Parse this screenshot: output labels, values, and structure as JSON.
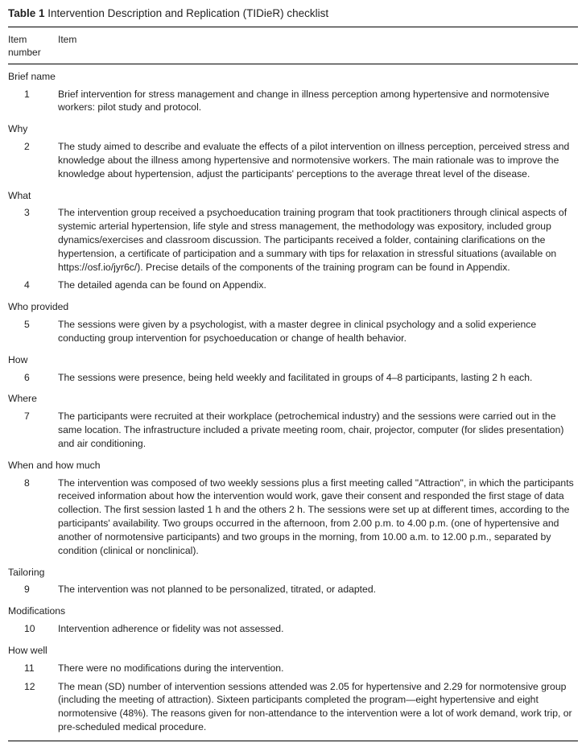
{
  "table": {
    "title_prefix": "Table 1",
    "title_rest": " Intervention Description and Replication (TIDieR) checklist",
    "header": {
      "col1": "Item number",
      "col2": "Item"
    },
    "sections": [
      {
        "label": "Brief name",
        "rows": [
          {
            "num": "1",
            "text": "Brief intervention for stress management and change in illness perception among hypertensive and normotensive workers: pilot study and protocol."
          }
        ]
      },
      {
        "label": "Why",
        "rows": [
          {
            "num": "2",
            "text": "The study aimed to describe and evaluate the effects of a pilot intervention on illness perception, perceived stress and knowledge about the illness among hypertensive and normotensive workers. The main rationale was to improve the knowledge about hypertension, adjust the participants' perceptions to the average threat level of the disease."
          }
        ]
      },
      {
        "label": "What",
        "rows": [
          {
            "num": "3",
            "text": "The intervention group received a psychoeducation training program that took practitioners through clinical aspects of systemic arterial hypertension, life style and stress management, the methodology was expository, included group dynamics/exercises and classroom discussion. The participants received a folder, containing clarifications on the hypertension, a certificate of participation and a summary with tips for relaxation in stressful situations (available on https://osf.io/jyr6c/). Precise details of the components of the training program can be found in Appendix."
          },
          {
            "num": "4",
            "text": "The detailed agenda can be found on Appendix."
          }
        ]
      },
      {
        "label": "Who provided",
        "rows": [
          {
            "num": "5",
            "text": "The sessions were given by a psychologist, with a master degree in clinical psychology and a solid experience conducting group intervention for psychoeducation or change of health behavior."
          }
        ]
      },
      {
        "label": "How",
        "rows": [
          {
            "num": "6",
            "text": "The sessions were presence, being held weekly and facilitated in groups of 4–8 participants, lasting 2 h each."
          }
        ]
      },
      {
        "label": "Where",
        "rows": [
          {
            "num": "7",
            "text": "The participants were recruited at their workplace (petrochemical industry) and the sessions were carried out in the same location. The infrastructure included a private meeting room, chair, projector, computer (for slides presentation) and air conditioning."
          }
        ]
      },
      {
        "label": "When and how much",
        "rows": [
          {
            "num": "8",
            "text": "The intervention was composed of two weekly sessions plus a first meeting called \"Attraction\", in which the participants received information about how the intervention would work, gave their consent and responded the first stage of data collection. The first session lasted 1 h and the others 2 h. The sessions were set up at different times, according to the participants' availability. Two groups occurred in the afternoon, from 2.00 p.m. to 4.00 p.m. (one of hypertensive and another of normotensive participants) and two groups in the morning, from 10.00 a.m. to 12.00 p.m., separated by condition (clinical or nonclinical)."
          }
        ]
      },
      {
        "label": "Tailoring",
        "rows": [
          {
            "num": "9",
            "text": "The intervention was not planned to be personalized, titrated, or adapted."
          }
        ]
      },
      {
        "label": "Modifications",
        "rows": [
          {
            "num": "10",
            "text": "Intervention adherence or fidelity was not assessed."
          }
        ]
      },
      {
        "label": "How well",
        "rows": [
          {
            "num": "11",
            "text": "There were no modifications during the intervention."
          },
          {
            "num": "12",
            "text": "The mean (SD) number of intervention sessions attended was 2.05 for hypertensive and 2.29 for normotensive group (including the meeting of attraction). Sixteen participants completed the program—eight hypertensive and eight normotensive (48%). The reasons given for non-attendance to the intervention were a lot of work demand, work trip, or pre-scheduled medical procedure."
          }
        ]
      }
    ]
  }
}
